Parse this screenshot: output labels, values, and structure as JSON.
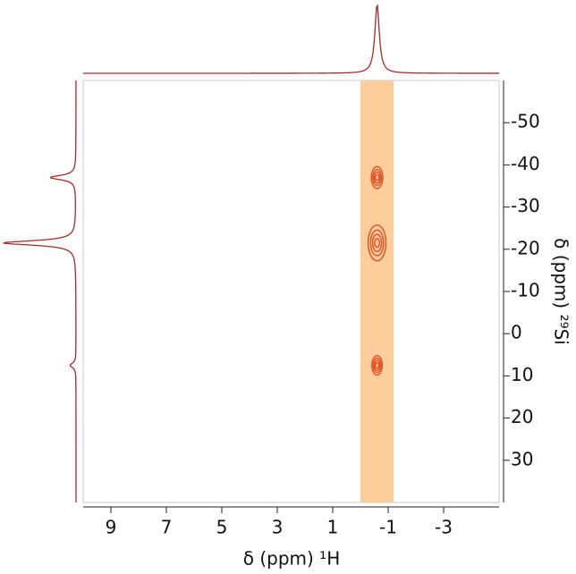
{
  "chart_data": {
    "type": "nmr2d",
    "xlabel": "δ (ppm) ¹H",
    "ylabel": "δ (ppm) ²⁹Si",
    "xlim": [
      10,
      -5
    ],
    "xticks": [
      9,
      7,
      5,
      3,
      1,
      -1,
      -3
    ],
    "ylim": [
      -60,
      40
    ],
    "yticks": [
      -50,
      -40,
      -30,
      -20,
      -10,
      0,
      10,
      20,
      30
    ],
    "highlight_band": {
      "x": [
        0,
        -1.2
      ],
      "color": "#fdcd9c"
    },
    "contour_color": "#e0552a",
    "projection_color": "#a52a2a",
    "peaks": {
      "x": [
        -0.6,
        -0.6,
        -0.6
      ],
      "y": [
        -37,
        -21.5,
        7.5
      ],
      "intensity": [
        0.4,
        1,
        0.3
      ]
    },
    "top_projection": {
      "x": [
        -0.6
      ],
      "intensity": [
        1
      ]
    },
    "left_projection": {
      "y": [
        -37,
        -21.5,
        7.5
      ],
      "intensity": [
        0.35,
        1,
        0.08
      ]
    }
  }
}
